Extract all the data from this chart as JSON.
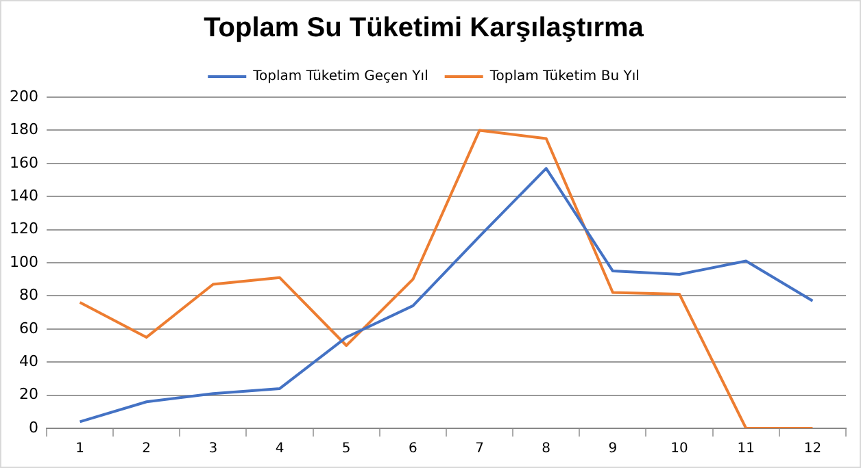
{
  "chart_data": {
    "type": "line",
    "title": "Toplam Su Tüketimi Karşılaştırma",
    "categories": [
      "1",
      "2",
      "3",
      "4",
      "5",
      "6",
      "7",
      "8",
      "9",
      "10",
      "11",
      "12"
    ],
    "series": [
      {
        "name": "Toplam Tüketim Geçen Yıl",
        "color": "#4472c4",
        "values": [
          4,
          16,
          21,
          24,
          55,
          74,
          116,
          157,
          95,
          93,
          101,
          77
        ]
      },
      {
        "name": "Toplam Tüketim Bu Yıl",
        "color": "#ed7d31",
        "values": [
          76,
          55,
          87,
          91,
          50,
          90,
          180,
          175,
          82,
          81,
          0,
          0
        ]
      }
    ],
    "ylim": [
      0,
      200
    ],
    "yticks": [
      0,
      20,
      40,
      60,
      80,
      100,
      120,
      140,
      160,
      180,
      200
    ],
    "grid": "y",
    "legend": "top",
    "marker": "none",
    "line_style": "solid"
  }
}
